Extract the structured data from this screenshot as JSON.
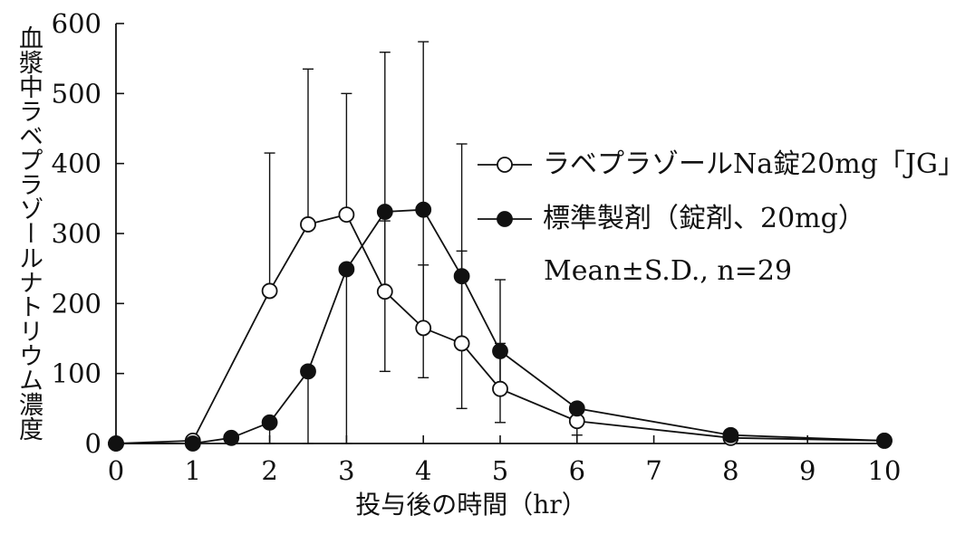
{
  "chart_data": {
    "type": "line",
    "xlabel": "投与後の時間（hr）",
    "ylabel": "血漿中ラベプラゾールナトリウム濃度",
    "xlim": [
      0,
      10
    ],
    "ylim": [
      0,
      600
    ],
    "xticks": [
      0,
      1,
      2,
      3,
      4,
      5,
      6,
      7,
      8,
      9,
      10
    ],
    "yticks": [
      0,
      100,
      200,
      300,
      400,
      500,
      600
    ],
    "x": [
      0,
      1,
      1.5,
      2,
      2.5,
      3,
      3.5,
      4,
      4.5,
      5,
      6,
      8,
      10
    ],
    "series": [
      {
        "name": "ラベプラゾールNa錠20mg「JG」",
        "marker": "open-circle",
        "values": [
          0,
          4,
          null,
          218,
          313,
          327,
          217,
          165,
          143,
          78,
          32,
          8,
          4
        ],
        "sd": [
          0,
          0,
          null,
          197,
          222,
          173,
          101,
          90,
          132,
          65,
          24,
          0,
          0
        ]
      },
      {
        "name": "標準製剤（錠剤、20mg）",
        "marker": "filled-circle",
        "values": [
          0,
          0,
          8,
          30,
          103,
          249,
          331,
          334,
          239,
          132,
          50,
          12,
          4
        ],
        "sd": [
          0,
          0,
          8,
          30,
          108,
          249,
          228,
          240,
          189,
          102,
          38,
          6,
          0
        ]
      }
    ],
    "annotation": "Mean±S.D., n=29",
    "legend_position": "right-middle",
    "grid": false,
    "colors": {
      "line": "#111111",
      "open_fill": "#ffffff",
      "filled": "#111111"
    }
  }
}
